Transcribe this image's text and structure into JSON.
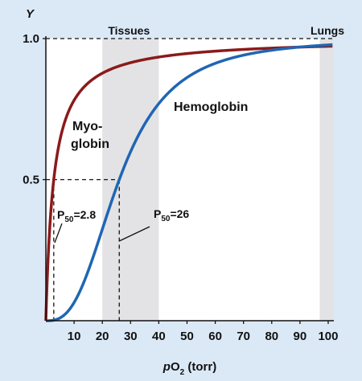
{
  "chart_data": {
    "type": "line",
    "ylabel": "Y",
    "xlabel_prefix": "pO",
    "xlabel_sub": "2",
    "xlabel_suffix": " (torr)",
    "xlim": [
      0,
      102
    ],
    "ylim": [
      0,
      1.0
    ],
    "x_ticks": [
      10,
      20,
      30,
      40,
      50,
      60,
      70,
      80,
      90,
      100
    ],
    "y_ticks": [
      {
        "value": 0.5,
        "label": "0.5"
      },
      {
        "value": 1.0,
        "label": "1.0"
      }
    ],
    "regions": [
      {
        "label": "Tissues",
        "x_range": [
          20,
          40
        ]
      },
      {
        "label": "Lungs",
        "x_range": [
          97,
          102
        ]
      }
    ],
    "series": [
      {
        "name": "Myoglobin",
        "label_line1": "Myo-",
        "label_line2": "globin",
        "color": "#8b1a1a",
        "p50": 2.8,
        "p50_label_prefix": "P",
        "p50_label_sub": "50",
        "p50_label_suffix": "=2.8"
      },
      {
        "name": "Hemoglobin",
        "label_line1": "Hemoglobin",
        "color": "#1f66b3",
        "p50": 26,
        "hill": 2.8,
        "p50_label_prefix": "P",
        "p50_label_sub": "50",
        "p50_label_suffix": "=26"
      }
    ]
  }
}
